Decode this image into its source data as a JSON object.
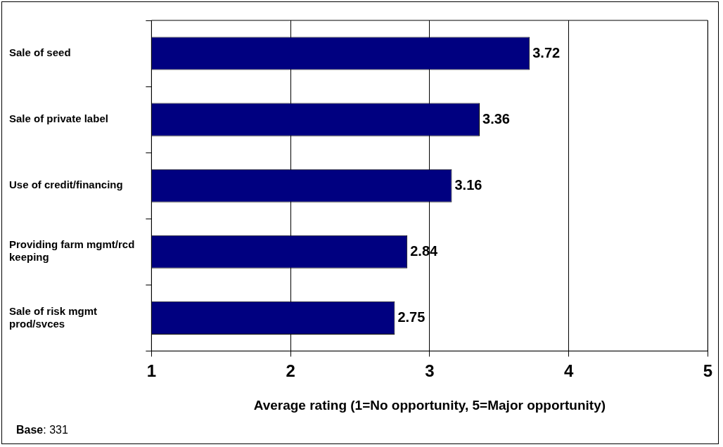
{
  "chart_data": {
    "type": "bar",
    "orientation": "horizontal",
    "categories": [
      "Sale of seed",
      "Sale of private label",
      "Use of credit/financing",
      "Providing farm mgmt/rcd keeping",
      "Sale of risk mgmt prod/svces"
    ],
    "values": [
      3.72,
      3.36,
      3.16,
      2.84,
      2.75
    ],
    "color": "#000080",
    "xlim": [
      1,
      5
    ],
    "xticks": [
      1,
      2,
      3,
      4,
      5
    ],
    "xlabel": "Average rating (1=No opportunity, 5=Major opportunity)",
    "grid": "x",
    "legend": false,
    "data_labels": true,
    "annotations": [
      "Base: 331"
    ]
  }
}
